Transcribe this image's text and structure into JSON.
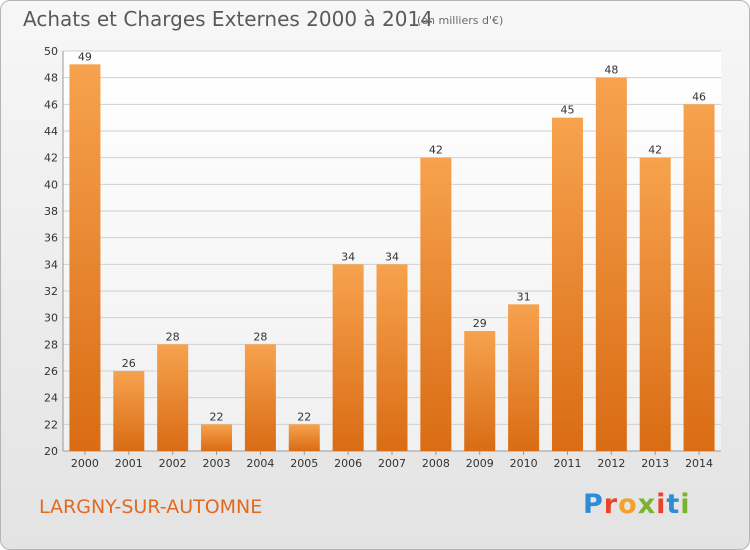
{
  "header": {
    "title": "Achats et Charges Externes 2000 à 2014",
    "subtitle": "(en milliers d'€)"
  },
  "footer": {
    "commune": "LARGNY-SUR-AUTOMNE",
    "logo_text": "Proxiti",
    "logo_colors": [
      "#2e8bd6",
      "#e8432d",
      "#f2a12c",
      "#7ab42f",
      "#e8432d",
      "#2e8bd6",
      "#7ab42f"
    ]
  },
  "colors": {
    "bar_top": "#f7a24e",
    "bar_bottom": "#d96c14",
    "grid": "#d0d0d0",
    "axis_text": "#333333"
  },
  "chart_data": {
    "type": "bar",
    "categories": [
      "2000",
      "2001",
      "2002",
      "2003",
      "2004",
      "2005",
      "2006",
      "2007",
      "2008",
      "2009",
      "2010",
      "2011",
      "2012",
      "2013",
      "2014"
    ],
    "values": [
      49,
      26,
      28,
      22,
      28,
      22,
      34,
      34,
      42,
      29,
      31,
      45,
      48,
      42,
      46
    ],
    "ylim": [
      20,
      50
    ],
    "yticks": [
      20,
      22,
      24,
      26,
      28,
      30,
      32,
      34,
      36,
      38,
      40,
      42,
      44,
      46,
      48,
      50
    ],
    "grid": true,
    "data_labels": true
  }
}
